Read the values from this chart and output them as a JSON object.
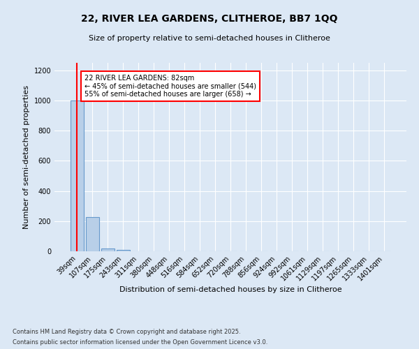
{
  "title_line1": "22, RIVER LEA GARDENS, CLITHEROE, BB7 1QQ",
  "title_line2": "Size of property relative to semi-detached houses in Clitheroe",
  "xlabel": "Distribution of semi-detached houses by size in Clitheroe",
  "ylabel": "Number of semi-detached properties",
  "bar_labels": [
    "39sqm",
    "107sqm",
    "175sqm",
    "243sqm",
    "311sqm",
    "380sqm",
    "448sqm",
    "516sqm",
    "584sqm",
    "652sqm",
    "720sqm",
    "788sqm",
    "856sqm",
    "924sqm",
    "992sqm",
    "1061sqm",
    "1129sqm",
    "1197sqm",
    "1265sqm",
    "1333sqm",
    "1401sqm"
  ],
  "bar_values": [
    1000,
    225,
    20,
    7,
    0,
    0,
    0,
    0,
    0,
    0,
    0,
    0,
    0,
    0,
    0,
    0,
    0,
    0,
    0,
    0,
    0
  ],
  "bar_color": "#b8cfe8",
  "bar_edge_color": "#6699cc",
  "annotation_title": "22 RIVER LEA GARDENS: 82sqm",
  "annotation_line2": "← 45% of semi-detached houses are smaller (544)",
  "annotation_line3": "55% of semi-detached houses are larger (658) →",
  "vline_color": "red",
  "annotation_box_color": "#ffffff",
  "annotation_box_edge": "red",
  "ylim": [
    0,
    1250
  ],
  "yticks": [
    0,
    200,
    400,
    600,
    800,
    1000,
    1200
  ],
  "footer_line1": "Contains HM Land Registry data © Crown copyright and database right 2025.",
  "footer_line2": "Contains public sector information licensed under the Open Government Licence v3.0.",
  "bg_color": "#dce8f5",
  "grid_color": "#ffffff"
}
